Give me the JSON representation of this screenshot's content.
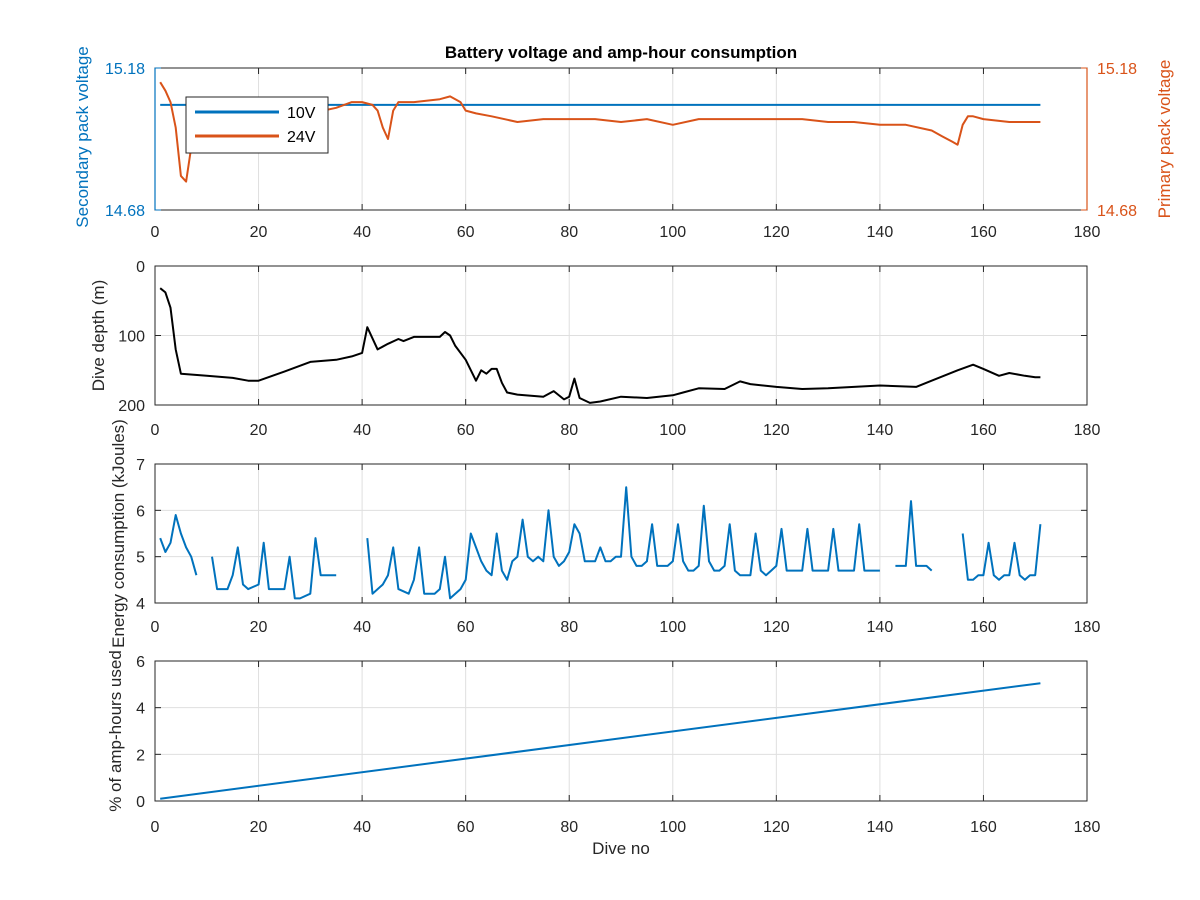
{
  "chart_data": [
    {
      "type": "line",
      "title": "Battery voltage and amp-hour consumption",
      "xlabel": "",
      "ylabel_left": "Secondary pack voltage",
      "ylabel_right": "Primary pack voltage",
      "xlim": [
        0,
        180
      ],
      "xticks": [
        0,
        20,
        40,
        60,
        80,
        100,
        120,
        140,
        160,
        180
      ],
      "ylim": [
        14.68,
        15.18
      ],
      "yticks_left": [
        "14.68",
        "15.18"
      ],
      "yticks_right": [
        "14.68",
        "15.18"
      ],
      "grid": true,
      "legend": {
        "placement": "top-left",
        "entries": [
          "10V",
          "24V"
        ]
      },
      "series": [
        {
          "name": "10V",
          "axis": "left",
          "color": "#0072BD",
          "x": [
            1,
            171
          ],
          "y": [
            15.05,
            15.05
          ]
        },
        {
          "name": "24V",
          "axis": "right",
          "color": "#D95319",
          "x": [
            1,
            2,
            3,
            4,
            5,
            6,
            7,
            8,
            10,
            15,
            20,
            25,
            30,
            35,
            38,
            40,
            42,
            43,
            44,
            45,
            46,
            47,
            50,
            55,
            57,
            58,
            59,
            60,
            62,
            65,
            70,
            75,
            80,
            85,
            90,
            95,
            100,
            105,
            110,
            115,
            120,
            125,
            130,
            135,
            140,
            145,
            150,
            152,
            154,
            155,
            156,
            157,
            158,
            160,
            165,
            170,
            171
          ],
          "y": [
            15.13,
            15.1,
            15.06,
            14.97,
            14.8,
            14.78,
            14.9,
            15.0,
            15.01,
            15.01,
            15.0,
            15.01,
            15.02,
            15.04,
            15.06,
            15.06,
            15.05,
            15.03,
            14.97,
            14.93,
            15.03,
            15.06,
            15.06,
            15.07,
            15.08,
            15.07,
            15.06,
            15.03,
            15.02,
            15.01,
            14.99,
            15.0,
            15.0,
            15.0,
            14.99,
            15.0,
            14.98,
            15.0,
            15.0,
            15.0,
            15.0,
            15.0,
            14.99,
            14.99,
            14.98,
            14.98,
            14.96,
            14.94,
            14.92,
            14.91,
            14.98,
            15.01,
            15.01,
            15.0,
            14.99,
            14.99,
            14.99
          ]
        }
      ]
    },
    {
      "type": "line",
      "title": "",
      "xlabel": "",
      "ylabel": "Dive depth (m)",
      "xlim": [
        0,
        180
      ],
      "xticks": [
        0,
        20,
        40,
        60,
        80,
        100,
        120,
        140,
        160,
        180
      ],
      "ylim": [
        0,
        200
      ],
      "yticks": [
        0,
        100,
        200
      ],
      "y_reversed": true,
      "grid": true,
      "series": [
        {
          "color": "#000000",
          "x": [
            1,
            2,
            3,
            4,
            5,
            10,
            15,
            18,
            20,
            25,
            30,
            35,
            38,
            40,
            41,
            43,
            45,
            47,
            48,
            50,
            55,
            56,
            57,
            58,
            60,
            62,
            63,
            64,
            65,
            66,
            67,
            68,
            70,
            75,
            77,
            79,
            80,
            81,
            82,
            84,
            86,
            90,
            95,
            100,
            102,
            105,
            110,
            113,
            115,
            120,
            125,
            130,
            135,
            140,
            147,
            155,
            158,
            160,
            163,
            165,
            168,
            170,
            171
          ],
          "y": [
            32,
            38,
            60,
            120,
            155,
            158,
            161,
            165,
            165,
            152,
            138,
            135,
            130,
            125,
            88,
            120,
            112,
            105,
            108,
            102,
            102,
            95,
            100,
            115,
            135,
            165,
            150,
            155,
            148,
            148,
            168,
            182,
            185,
            188,
            180,
            192,
            188,
            162,
            190,
            197,
            195,
            188,
            190,
            186,
            182,
            176,
            177,
            166,
            170,
            174,
            177,
            176,
            174,
            172,
            174,
            150,
            142,
            148,
            158,
            154,
            158,
            160,
            160
          ]
        }
      ]
    },
    {
      "type": "line",
      "title": "",
      "xlabel": "",
      "ylabel": "Energy consumption (kJoules)",
      "xlim": [
        0,
        180
      ],
      "xticks": [
        0,
        20,
        40,
        60,
        80,
        100,
        120,
        140,
        160,
        180
      ],
      "ylim": [
        4,
        7
      ],
      "yticks": [
        4,
        5,
        6,
        7
      ],
      "grid": true,
      "series": [
        {
          "color": "#0072BD",
          "segments": [
            {
              "x": [
                1,
                2,
                3,
                4,
                5,
                6,
                7,
                8
              ],
              "y": [
                5.4,
                5.1,
                5.3,
                5.9,
                5.5,
                5.2,
                5.0,
                4.6
              ]
            },
            {
              "x": [
                11,
                12,
                14,
                15,
                16,
                17,
                18,
                20,
                21,
                22,
                24,
                25,
                26,
                27,
                28,
                30,
                31,
                32,
                34,
                35
              ],
              "y": [
                5.0,
                4.3,
                4.3,
                4.6,
                5.2,
                4.4,
                4.3,
                4.4,
                5.3,
                4.3,
                4.3,
                4.3,
                5.0,
                4.1,
                4.1,
                4.2,
                5.4,
                4.6,
                4.6,
                4.6
              ]
            },
            {
              "x": [
                41,
                42,
                44,
                45,
                46,
                47,
                49,
                50,
                51,
                52,
                54,
                55,
                56,
                57,
                59,
                60,
                61,
                62,
                63,
                64,
                65,
                66,
                67,
                68,
                69,
                70,
                71,
                72,
                73,
                74,
                75,
                76,
                77,
                78,
                79,
                80,
                81,
                82,
                83,
                84,
                85,
                86,
                87,
                88,
                89,
                90,
                91,
                92,
                93,
                94,
                95,
                96,
                97,
                98,
                99,
                100,
                101,
                102,
                103,
                104,
                105,
                106,
                107,
                108,
                109,
                110,
                111,
                112,
                113,
                114,
                115,
                116,
                117,
                118,
                119,
                120,
                121,
                122,
                123,
                124,
                125,
                126,
                127,
                128,
                129,
                130,
                131,
                132,
                133,
                134,
                135,
                136,
                137,
                138,
                139,
                140
              ],
              "y": [
                5.4,
                4.2,
                4.4,
                4.6,
                5.2,
                4.3,
                4.2,
                4.5,
                5.2,
                4.2,
                4.2,
                4.3,
                5.0,
                4.1,
                4.3,
                4.5,
                5.5,
                5.2,
                4.9,
                4.7,
                4.6,
                5.5,
                4.7,
                4.5,
                4.9,
                5.0,
                5.8,
                5.0,
                4.9,
                5.0,
                4.9,
                6.0,
                5.0,
                4.8,
                4.9,
                5.1,
                5.7,
                5.5,
                4.9,
                4.9,
                4.9,
                5.2,
                4.9,
                4.9,
                5.0,
                5.0,
                6.5,
                5.0,
                4.8,
                4.8,
                4.9,
                5.7,
                4.8,
                4.8,
                4.8,
                4.9,
                5.7,
                4.9,
                4.7,
                4.7,
                4.8,
                6.1,
                4.9,
                4.7,
                4.7,
                4.8,
                5.7,
                4.7,
                4.6,
                4.6,
                4.6,
                5.5,
                4.7,
                4.6,
                4.7,
                4.8,
                5.6,
                4.7,
                4.7,
                4.7,
                4.7,
                5.6,
                4.7,
                4.7,
                4.7,
                4.7,
                5.6,
                4.7,
                4.7,
                4.7,
                4.7,
                5.7,
                4.7,
                4.7,
                4.7,
                4.7
              ]
            },
            {
              "x": [
                143,
                144,
                145,
                146,
                147,
                148,
                149,
                150
              ],
              "y": [
                4.8,
                4.8,
                4.8,
                6.2,
                4.8,
                4.8,
                4.8,
                4.7
              ]
            },
            {
              "x": [
                156,
                157,
                158,
                159,
                160,
                161,
                162,
                163,
                164,
                165,
                166,
                167,
                168,
                169,
                170,
                171
              ],
              "y": [
                5.5,
                4.5,
                4.5,
                4.6,
                4.6,
                5.3,
                4.6,
                4.5,
                4.6,
                4.6,
                5.3,
                4.6,
                4.5,
                4.6,
                4.6,
                5.7
              ]
            }
          ]
        }
      ]
    },
    {
      "type": "line",
      "title": "",
      "xlabel": "Dive no",
      "ylabel": "% of amp-hours used",
      "xlim": [
        0,
        180
      ],
      "xticks": [
        0,
        20,
        40,
        60,
        80,
        100,
        120,
        140,
        160,
        180
      ],
      "ylim": [
        0,
        6
      ],
      "yticks": [
        0,
        2,
        4,
        6
      ],
      "grid": true,
      "series": [
        {
          "color": "#0072BD",
          "x": [
            1,
            171
          ],
          "y": [
            0.1,
            5.05
          ]
        }
      ]
    }
  ]
}
